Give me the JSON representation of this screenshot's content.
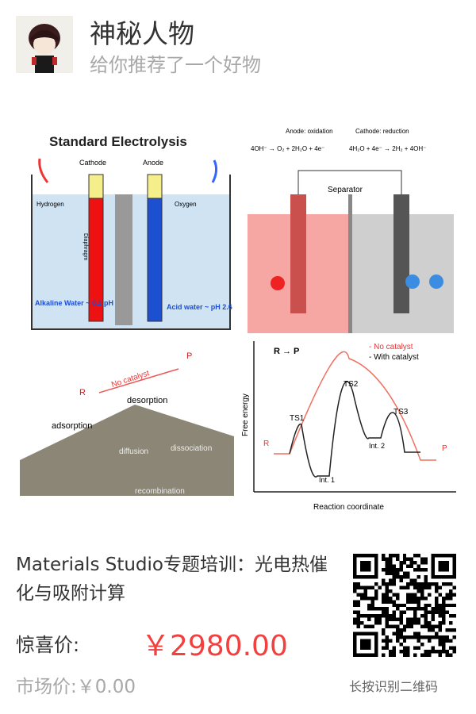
{
  "header": {
    "user_name": "神秘人物",
    "subtitle": "给你推荐了一个好物"
  },
  "product_image": {
    "panel1": {
      "title": "Standard Electrolysis",
      "cathode": "Cathode",
      "anode": "Anode",
      "hydrogen": "Hydrogen",
      "oxygen": "Oxygen",
      "diaphragm": "Diaphragm",
      "left_solution": "Alkaline Water ~ 8.2 pH",
      "right_solution": "Acid water ~ pH 2.6"
    },
    "panel2": {
      "anode_label": "Anode: oxidation",
      "anode_reaction": "4OH⁻ → O₂ + 2H₂O + 4e⁻",
      "cathode_label": "Cathode: reduction",
      "cathode_reaction": "4H₂O + 4e⁻ → 2H₂ + 4OH⁻",
      "separator": "Separator"
    },
    "panel3": {
      "no_catalyst": "No catalyst",
      "desorption": "desorption",
      "adsorption": "adsorption",
      "diffusion": "diffusion",
      "dissociation": "dissociation",
      "recombination": "recombination",
      "r": "R",
      "p": "P"
    },
    "panel4": {
      "title": "R → P",
      "legend_no": "- No catalyst",
      "legend_with": "- With catalyst",
      "ylabel": "Free energy",
      "xlabel": "Reaction coordinate",
      "ts1": "TS1",
      "ts2": "TS2",
      "ts3": "TS3",
      "int1": "Int. 1",
      "int2": "Int. 2",
      "r": "R",
      "p": "P"
    }
  },
  "product": {
    "title": "Materials Studio专题培训：光电热催化与吸附计算",
    "price_label": "惊喜价:",
    "price": "￥2980.00",
    "market_price": "市场价:￥0.00"
  },
  "qr": {
    "hint": "长按识别二维码"
  },
  "colors": {
    "price": "#f2403f",
    "muted": "#a8a8a8",
    "text": "#333333"
  }
}
